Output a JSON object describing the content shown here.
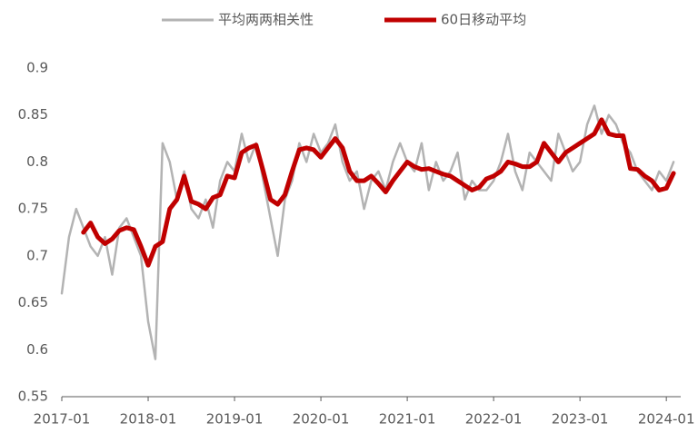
{
  "chart_data": {
    "type": "line",
    "x": [
      "2017-01",
      "2017-02",
      "2017-03",
      "2017-04",
      "2017-05",
      "2017-06",
      "2017-07",
      "2017-08",
      "2017-09",
      "2017-10",
      "2017-11",
      "2017-12",
      "2018-01",
      "2018-02",
      "2018-03",
      "2018-04",
      "2018-05",
      "2018-06",
      "2018-07",
      "2018-08",
      "2018-09",
      "2018-10",
      "2018-11",
      "2018-12",
      "2019-01",
      "2019-02",
      "2019-03",
      "2019-04",
      "2019-05",
      "2019-06",
      "2019-07",
      "2019-08",
      "2019-09",
      "2019-10",
      "2019-11",
      "2019-12",
      "2020-01",
      "2020-02",
      "2020-03",
      "2020-04",
      "2020-05",
      "2020-06",
      "2020-07",
      "2020-08",
      "2020-09",
      "2020-10",
      "2020-11",
      "2020-12",
      "2021-01",
      "2021-02",
      "2021-03",
      "2021-04",
      "2021-05",
      "2021-06",
      "2021-07",
      "2021-08",
      "2021-09",
      "2021-10",
      "2021-11",
      "2021-12",
      "2022-01",
      "2022-02",
      "2022-03",
      "2022-04",
      "2022-05",
      "2022-06",
      "2022-07",
      "2022-08",
      "2022-09",
      "2022-10",
      "2022-11",
      "2022-12",
      "2023-01",
      "2023-02",
      "2023-03",
      "2023-04",
      "2023-05",
      "2023-06",
      "2023-07",
      "2023-08",
      "2023-09",
      "2023-10",
      "2023-11",
      "2023-12",
      "2024-01",
      "2024-02"
    ],
    "series": [
      {
        "name": "平均两两相关性",
        "color": "#b3b3b3",
        "values": [
          0.66,
          0.72,
          0.75,
          0.73,
          0.71,
          0.7,
          0.72,
          0.68,
          0.73,
          0.74,
          0.72,
          0.7,
          0.63,
          0.59,
          0.82,
          0.8,
          0.76,
          0.79,
          0.75,
          0.74,
          0.76,
          0.73,
          0.78,
          0.8,
          0.79,
          0.83,
          0.8,
          0.82,
          0.78,
          0.74,
          0.7,
          0.76,
          0.78,
          0.82,
          0.8,
          0.83,
          0.81,
          0.82,
          0.84,
          0.8,
          0.78,
          0.79,
          0.75,
          0.78,
          0.79,
          0.77,
          0.8,
          0.82,
          0.8,
          0.79,
          0.82,
          0.77,
          0.8,
          0.78,
          0.79,
          0.81,
          0.76,
          0.78,
          0.77,
          0.77,
          0.78,
          0.8,
          0.83,
          0.79,
          0.77,
          0.81,
          0.8,
          0.79,
          0.78,
          0.83,
          0.81,
          0.79,
          0.8,
          0.84,
          0.86,
          0.83,
          0.85,
          0.84,
          0.82,
          0.81,
          0.79,
          0.78,
          0.77,
          0.79,
          0.78,
          0.8
        ]
      },
      {
        "name": "60日移动平均",
        "color": "#c00000",
        "values": [
          null,
          null,
          null,
          0.725,
          0.735,
          0.72,
          0.713,
          0.718,
          0.727,
          0.73,
          0.728,
          0.71,
          0.69,
          0.71,
          0.715,
          0.75,
          0.76,
          0.785,
          0.758,
          0.755,
          0.75,
          0.762,
          0.765,
          0.785,
          0.783,
          0.81,
          0.815,
          0.818,
          0.79,
          0.76,
          0.755,
          0.765,
          0.79,
          0.813,
          0.815,
          0.813,
          0.805,
          0.815,
          0.825,
          0.815,
          0.79,
          0.78,
          0.78,
          0.785,
          0.777,
          0.768,
          0.78,
          0.79,
          0.8,
          0.795,
          0.792,
          0.793,
          0.79,
          0.787,
          0.785,
          0.78,
          0.775,
          0.77,
          0.773,
          0.782,
          0.785,
          0.79,
          0.8,
          0.798,
          0.795,
          0.795,
          0.8,
          0.82,
          0.81,
          0.8,
          0.81,
          0.815,
          0.82,
          0.825,
          0.83,
          0.845,
          0.83,
          0.828,
          0.828,
          0.793,
          0.792,
          0.785,
          0.78,
          0.77,
          0.772,
          0.788
        ]
      }
    ],
    "xlim": [
      "2017-01",
      "2024-03"
    ],
    "xticks": [
      "2017-01",
      "2018-01",
      "2019-01",
      "2020-01",
      "2021-01",
      "2022-01",
      "2023-01",
      "2024-01"
    ],
    "ylim": [
      0.55,
      0.9
    ],
    "yticks": [
      0.55,
      0.6,
      0.65,
      0.7,
      0.75,
      0.8,
      0.85,
      0.9
    ],
    "legend": "top"
  }
}
